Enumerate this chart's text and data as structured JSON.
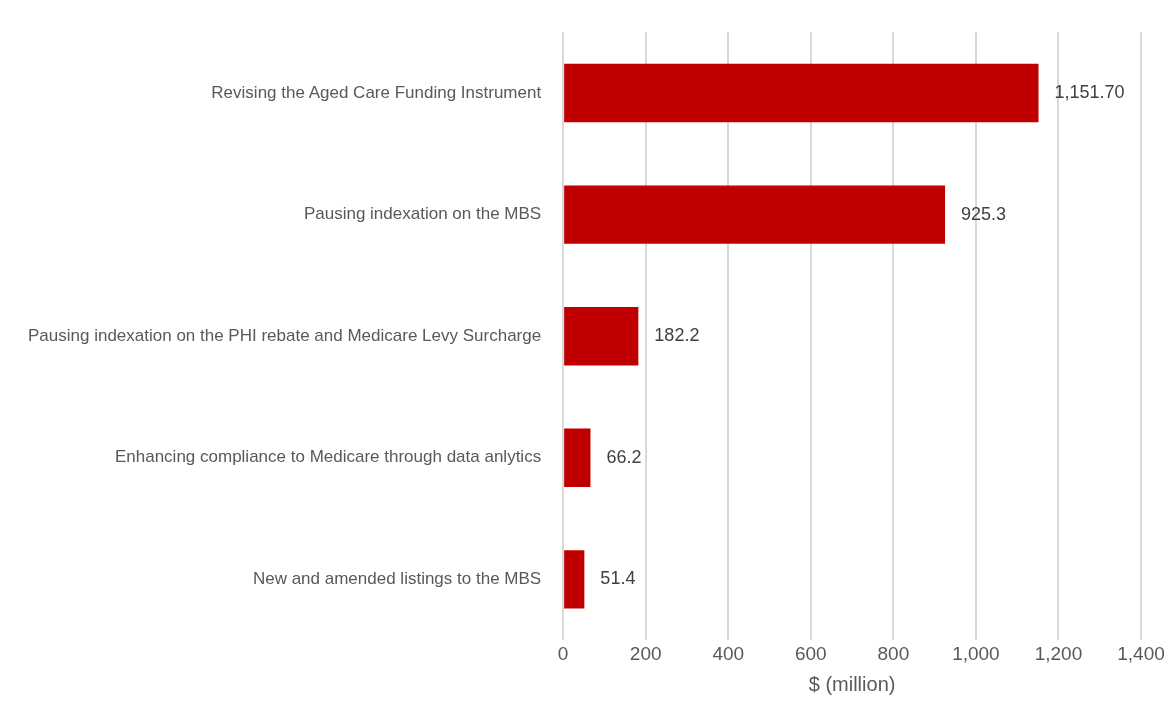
{
  "chart_data": {
    "type": "bar",
    "orientation": "horizontal",
    "xlabel": "$ (million)",
    "categories": [
      "Revising the Aged Care Funding Instrument",
      "Pausing indexation on the MBS",
      "Pausing indexation on the PHI rebate and Medicare Levy Surcharge",
      "Enhancing compliance to Medicare through data anlytics",
      "New and amended listings to the MBS"
    ],
    "values": [
      1151.7,
      925.3,
      182.2,
      66.2,
      51.4
    ],
    "value_labels": [
      "1,151.70",
      "925.3",
      "182.2",
      "66.2",
      "51.4"
    ],
    "color": "#c00000",
    "xlim": [
      0,
      1400
    ],
    "xticks": [
      {
        "value": 0,
        "label": "0"
      },
      {
        "value": 200,
        "label": "200"
      },
      {
        "value": 400,
        "label": "400"
      },
      {
        "value": 600,
        "label": "600"
      },
      {
        "value": 800,
        "label": "800"
      },
      {
        "value": 1000,
        "label": "1,000"
      },
      {
        "value": 1200,
        "label": "1,200"
      },
      {
        "value": 1400,
        "label": "1,400"
      }
    ],
    "grid": "x",
    "legend": false
  }
}
